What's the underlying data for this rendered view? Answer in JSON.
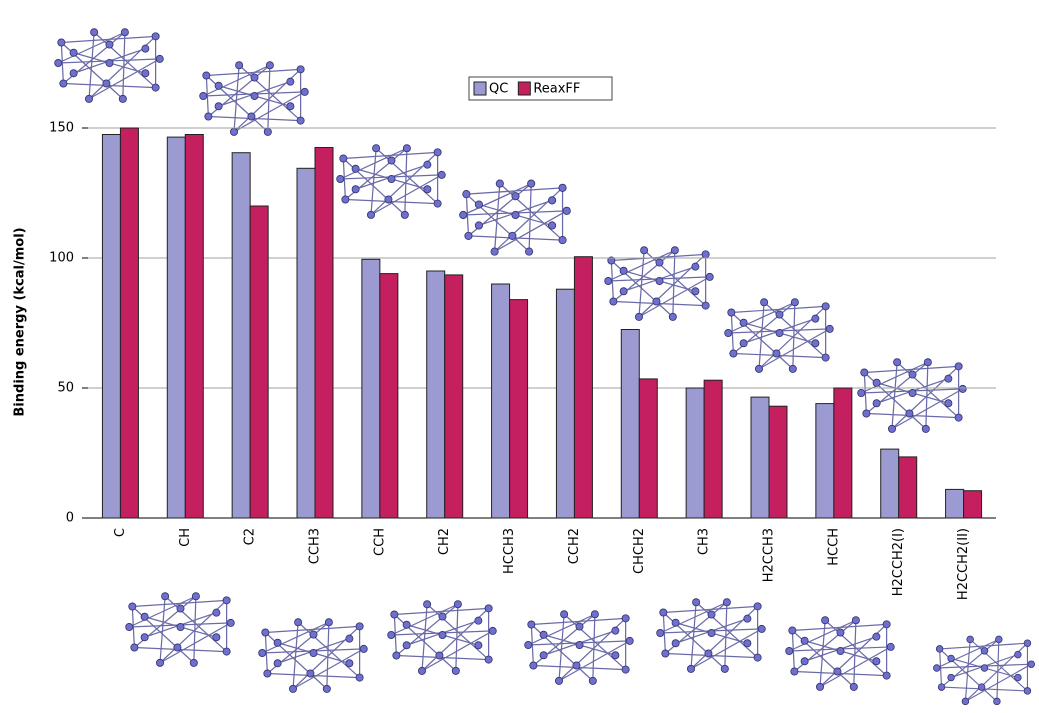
{
  "chart_data": {
    "type": "bar",
    "y_label": "Binding energy (kcal/mol)",
    "categories": [
      "C",
      "CH",
      "C2",
      "CCH3",
      "CCH",
      "CH2",
      "HCCH3",
      "CCH2",
      "CHCH2",
      "CH3",
      "H2CCH3",
      "HCCH",
      "H2CCH2(I)",
      "H2CCH2(II)"
    ],
    "series": [
      {
        "name": "QC",
        "color": "#9b9bd2",
        "values": [
          147.5,
          146.5,
          140.5,
          134.5,
          99.5,
          95,
          90,
          88,
          72.5,
          50,
          46.5,
          44,
          26.5,
          11
        ]
      },
      {
        "name": "ReaxFF",
        "color": "#c41f5e",
        "values": [
          150,
          147.5,
          120,
          142.5,
          94,
          93.5,
          84,
          100.5,
          53.5,
          53,
          43,
          50,
          23.5,
          10.5
        ]
      }
    ],
    "ylim": [
      0,
      150
    ],
    "yticks": [
      0,
      50,
      100,
      150
    ],
    "grid": true
  }
}
